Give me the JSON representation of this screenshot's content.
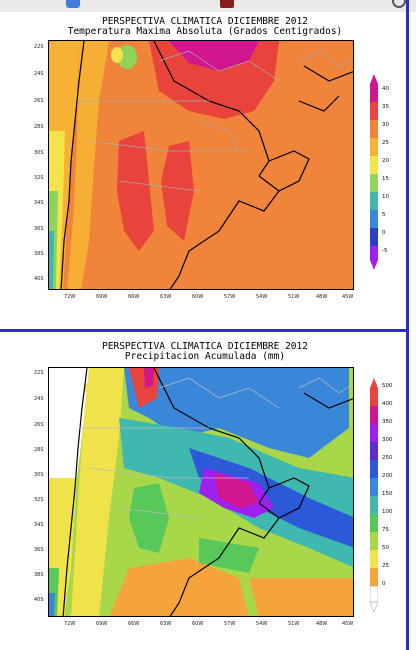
{
  "panels": [
    {
      "title1": "PERSPECTIVA CLIMATICA DICIEMBRE 2012",
      "title2": "Temperatura Maxima Absoluta (Grados Centigrados)",
      "legend": [
        "40",
        "35",
        "30",
        "25",
        "20",
        "15",
        "10",
        "5",
        "0",
        "-5"
      ],
      "legend_colors": [
        "#d21690",
        "#e8443c",
        "#f0843a",
        "#f7b235",
        "#f5e34c",
        "#8fd45a",
        "#3fb8b0",
        "#3a86d8",
        "#2b3fc2",
        "#a020f0"
      ]
    },
    {
      "title1": "PERSPECTIVA CLIMATICA DICIEMBRE 2012",
      "title2": "Precipitacion Acumulada (mm)",
      "legend": [
        "500",
        "400",
        "350",
        "300",
        "250",
        "200",
        "150",
        "100",
        "75",
        "50",
        "25",
        "0"
      ],
      "legend_colors": [
        "#e8443c",
        "#d21690",
        "#a020f0",
        "#5a2ec8",
        "#2b59d8",
        "#3a86d8",
        "#3fb8b0",
        "#58c85a",
        "#a8d84a",
        "#f0e24a",
        "#f4a43a",
        "#ffffff"
      ]
    }
  ],
  "lat_labels": [
    "22S",
    "24S",
    "26S",
    "28S",
    "30S",
    "32S",
    "34S",
    "36S",
    "38S",
    "40S"
  ],
  "lon_labels": [
    "72W",
    "69W",
    "66W",
    "63W",
    "60W",
    "57W",
    "54W",
    "51W",
    "48W",
    "45W"
  ]
}
